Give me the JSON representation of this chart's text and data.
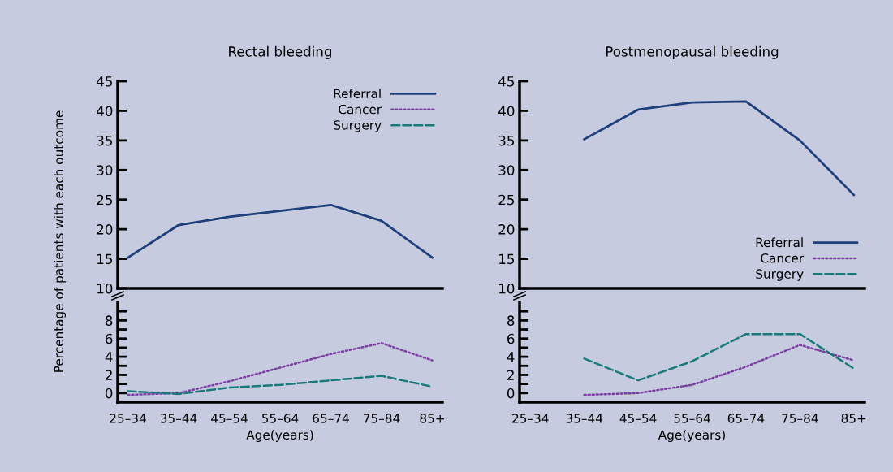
{
  "chart_data": [
    {
      "type": "line",
      "title": "Rectal bleeding",
      "ylabel": "Percentage of patients with each outcome",
      "categories": [
        null,
        null,
        null,
        null,
        null,
        null,
        null
      ],
      "ylim": [
        10,
        45
      ],
      "yticks": [
        10,
        15,
        20,
        25,
        30,
        35,
        40,
        45
      ],
      "tick_labels": "y",
      "legend": "top right",
      "grid": false,
      "series": [
        {
          "name": "Referral",
          "color": "#1f3f7a",
          "line_style": "solid",
          "values": [
            15.2,
            20.7,
            22.1,
            23.1,
            24.1,
            21.4,
            15.2
          ]
        }
      ]
    },
    {
      "type": "line",
      "title": "Postmenopausal bleeding",
      "categories": [
        null,
        null,
        null,
        null,
        null,
        null,
        null
      ],
      "ylim": [
        10,
        45
      ],
      "yticks": [
        10,
        15,
        20,
        25,
        30,
        35,
        40,
        45
      ],
      "tick_labels": "y",
      "legend": "bottom right",
      "grid": false,
      "series": [
        {
          "name": "Referral",
          "color": "#1f3f7a",
          "line_style": "solid",
          "values": [
            null,
            35.2,
            40.2,
            41.4,
            41.6,
            35.0,
            25.8
          ]
        }
      ]
    },
    {
      "type": "line",
      "xlabel": "Age(years)",
      "categories": [
        "25–34",
        "35–44",
        "45–54",
        "55–64",
        "65–74",
        "75–84",
        "85+"
      ],
      "ylim": [
        -1,
        10
      ],
      "yticks": [
        0,
        {
          "value": 1,
          "label": null
        },
        2,
        {
          "value": 3,
          "label": null
        },
        4,
        {
          "value": 5,
          "label": null
        },
        6,
        {
          "value": 7,
          "label": null
        },
        8,
        {
          "value": 9,
          "label": null
        }
      ],
      "legend": "top",
      "grid": false,
      "series": [
        {
          "name": "Cancer",
          "color": "#7a3fa0",
          "line_style": "dotted",
          "values": [
            -0.2,
            0,
            1.3,
            2.8,
            4.3,
            5.5,
            3.6
          ]
        },
        {
          "name": "Surgery",
          "color": "#1a7a7a",
          "line_style": "dashed",
          "values": [
            0.2,
            -0.1,
            0.6,
            0.9,
            1.4,
            1.9,
            0.7
          ]
        }
      ]
    },
    {
      "type": "line",
      "xlabel": "Age(years)",
      "categories": [
        "25–34",
        "35–44",
        "45–54",
        "55–64",
        "65–74",
        "75–84",
        "85+"
      ],
      "ylim": [
        -1,
        10
      ],
      "yticks": [
        0,
        {
          "value": 1,
          "label": null
        },
        2,
        {
          "value": 3,
          "label": null
        },
        4,
        {
          "value": 5,
          "label": null
        },
        6,
        {
          "value": 7,
          "label": null
        },
        8,
        {
          "value": 9,
          "label": null
        }
      ],
      "legend": "top",
      "grid": false,
      "series": [
        {
          "name": "Cancer",
          "color": "#7a3fa0",
          "line_style": "dotted",
          "values": [
            null,
            -0.2,
            0,
            0.9,
            2.9,
            5.3,
            3.6
          ]
        },
        {
          "name": "Surgery",
          "color": "#1a7a7a",
          "line_style": "dashed",
          "values": [
            null,
            3.8,
            1.4,
            3.5,
            6.5,
            6.5,
            2.7
          ]
        }
      ]
    }
  ]
}
